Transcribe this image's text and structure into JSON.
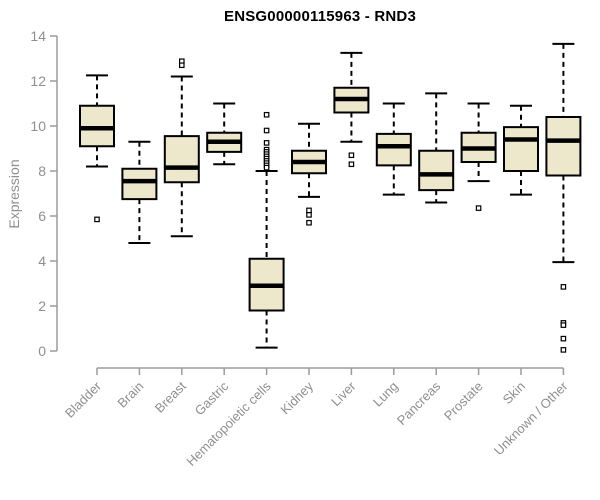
{
  "chart_data": {
    "type": "boxplot",
    "title": "ENSG00000115963 - RND3",
    "ylabel": "Expression",
    "xlabel": "",
    "ylim": [
      0,
      14
    ],
    "yticks": [
      0,
      2,
      4,
      6,
      8,
      10,
      12,
      14
    ],
    "grid": false,
    "legend": "none",
    "categories": [
      "Bladder",
      "Brain",
      "Breast",
      "Gastric",
      "Hematopoietic cells",
      "Kidney",
      "Liver",
      "Lung",
      "Pancreas",
      "Prostate",
      "Skin",
      "Unknown / Other"
    ],
    "series": [
      {
        "category": "Bladder",
        "whisker_low": 8.2,
        "q1": 9.1,
        "median": 9.9,
        "q3": 10.9,
        "whisker_high": 12.25,
        "outliers": [
          5.85
        ]
      },
      {
        "category": "Brain",
        "whisker_low": 4.8,
        "q1": 6.75,
        "median": 7.55,
        "q3": 8.1,
        "whisker_high": 9.3,
        "outliers": []
      },
      {
        "category": "Breast",
        "whisker_low": 5.1,
        "q1": 7.5,
        "median": 8.15,
        "q3": 9.55,
        "whisker_high": 12.2,
        "outliers": [
          12.88,
          12.7
        ]
      },
      {
        "category": "Gastric",
        "whisker_low": 8.3,
        "q1": 8.85,
        "median": 9.3,
        "q3": 9.7,
        "whisker_high": 11.0,
        "outliers": []
      },
      {
        "category": "Hematopoietic cells",
        "whisker_low": 0.15,
        "q1": 1.8,
        "median": 2.9,
        "q3": 4.1,
        "whisker_high": 8.0,
        "outliers": [
          10.5,
          9.8,
          9.25,
          8.95,
          8.85,
          8.75,
          8.65,
          8.55,
          8.45,
          8.35,
          8.25,
          8.15
        ]
      },
      {
        "category": "Kidney",
        "whisker_low": 6.85,
        "q1": 7.9,
        "median": 8.4,
        "q3": 8.9,
        "whisker_high": 10.1,
        "outliers": [
          6.25,
          6.05,
          5.7
        ]
      },
      {
        "category": "Liver",
        "whisker_low": 9.3,
        "q1": 10.6,
        "median": 11.2,
        "q3": 11.7,
        "whisker_high": 13.25,
        "outliers": [
          8.7,
          8.3
        ]
      },
      {
        "category": "Lung",
        "whisker_low": 6.95,
        "q1": 8.25,
        "median": 9.1,
        "q3": 9.65,
        "whisker_high": 11.0,
        "outliers": []
      },
      {
        "category": "Pancreas",
        "whisker_low": 6.6,
        "q1": 7.15,
        "median": 7.85,
        "q3": 8.9,
        "whisker_high": 11.45,
        "outliers": []
      },
      {
        "category": "Prostate",
        "whisker_low": 7.55,
        "q1": 8.4,
        "median": 9.0,
        "q3": 9.7,
        "whisker_high": 11.0,
        "outliers": [
          6.35
        ]
      },
      {
        "category": "Skin",
        "whisker_low": 6.95,
        "q1": 8.0,
        "median": 9.4,
        "q3": 9.95,
        "whisker_high": 10.9,
        "outliers": []
      },
      {
        "category": "Unknown / Other",
        "whisker_low": 3.95,
        "q1": 7.8,
        "median": 9.35,
        "q3": 10.4,
        "whisker_high": 13.65,
        "outliers": [
          2.85,
          1.25,
          1.15,
          0.55,
          0.05
        ]
      }
    ],
    "style": {
      "box_fill": "#EDE7CC",
      "box_border": "#000000",
      "median_color": "#000000",
      "whisker_color": "#000000",
      "axis_color": "#9b9b9b",
      "tick_label_color": "#8f8f8f",
      "title_color": "#000000",
      "background": "#ffffff"
    }
  }
}
